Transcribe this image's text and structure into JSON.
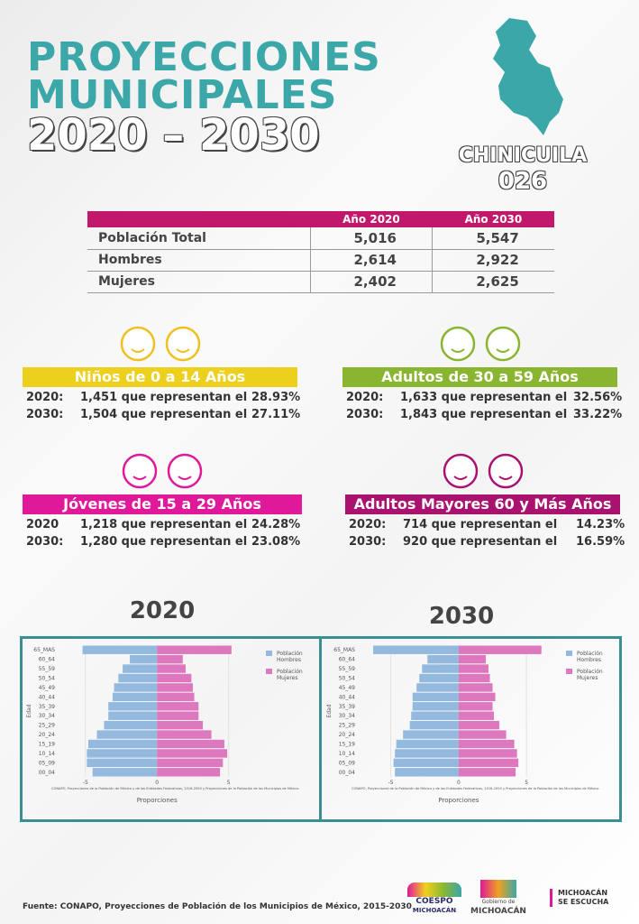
{
  "header": {
    "title_lines": [
      "PROYECCIONES",
      "MUNICIPALES",
      "2020 – 2030"
    ],
    "municipality": "CHINICUILA",
    "code": "026"
  },
  "table": {
    "columns": [
      "Año 2020",
      "Año 2030"
    ],
    "rows": [
      [
        "Población Total",
        "5,016",
        "5,547"
      ],
      [
        "Hombres",
        "2,614",
        "2,922"
      ],
      [
        "Mujeres",
        "2,402",
        "2,625"
      ]
    ]
  },
  "groups": [
    {
      "title": "Niños de 0 a 14 Años",
      "rows": [
        {
          "year": "2020:",
          "text": "1,451 que representan el",
          "pct": "28.93%"
        },
        {
          "year": "2030:",
          "text": "1,504 que representan el",
          "pct": "27.11%"
        }
      ]
    },
    {
      "title": "Adultos de 30 a 59 Años",
      "rows": [
        {
          "year": "2020:",
          "text": "1,633 que representan el",
          "pct": "32.56%"
        },
        {
          "year": "2030:",
          "text": "1,843 que representan el",
          "pct": "33.22%"
        }
      ]
    },
    {
      "title": "Jóvenes de 15 a 29 Años",
      "rows": [
        {
          "year": "2020",
          "text": "1,218 que representan el",
          "pct": "24.28%"
        },
        {
          "year": "2030:",
          "text": "1,280 que representan el",
          "pct": "23.08%"
        }
      ]
    },
    {
      "title": "Adultos Mayores 60 y Más Años",
      "rows": [
        {
          "year": "2020:",
          "text": "714 que representan el",
          "pct": "14.23%"
        },
        {
          "year": "2030:",
          "text": "920 que representan el",
          "pct": "16.59%"
        }
      ]
    }
  ],
  "chart_data": [
    {
      "type": "pyramid",
      "title": "2020",
      "ylabel": "Edad",
      "xlabel": "Proporciones",
      "note": "CONAPO, Proyecciones de la Población de México y de las Entidades Federativas, 2016-2050 y Proyecciones de la Población de los Municipios de México",
      "categories": [
        "65_MAS",
        "60_64",
        "55_59",
        "50_54",
        "45_49",
        "40_44",
        "35_39",
        "30_34",
        "25_29",
        "20_24",
        "15_19",
        "10_14",
        "05_09",
        "00_04"
      ],
      "series": [
        {
          "name": "Población Hombres",
          "color": "#93bade",
          "values": [
            -5.2,
            -1.9,
            -2.4,
            -2.7,
            -3.0,
            -3.1,
            -3.4,
            -3.4,
            -3.7,
            -4.2,
            -4.8,
            -4.9,
            -4.9,
            -4.5
          ]
        },
        {
          "name": "Población Mujeres",
          "color": "#dd78be",
          "values": [
            5.2,
            1.8,
            2.0,
            2.4,
            2.5,
            2.6,
            2.9,
            2.9,
            3.2,
            3.8,
            4.7,
            4.9,
            4.6,
            4.4
          ]
        }
      ],
      "xlim": [
        -7,
        11
      ],
      "xticks": [
        -5,
        0,
        5
      ],
      "grid": true
    },
    {
      "type": "pyramid",
      "title": "2030",
      "ylabel": "Edad",
      "xlabel": "Proporciones",
      "note": "CONAPO, Proyecciones de la Población de México y de las Entidades Federativas, 2016-2050 y Proyecciones de la Población de los Municipios de México",
      "categories": [
        "65_MAS",
        "60_64",
        "55_59",
        "50_54",
        "45_49",
        "40_44",
        "35_39",
        "30_34",
        "25_29",
        "20_24",
        "15_19",
        "10_14",
        "05_09",
        "00_04"
      ],
      "series": [
        {
          "name": "Población Hombres",
          "color": "#93bade",
          "values": [
            -6.3,
            -2.3,
            -2.7,
            -2.9,
            -3.1,
            -3.4,
            -3.4,
            -3.5,
            -3.6,
            -4.1,
            -4.6,
            -4.7,
            -4.8,
            -4.7
          ]
        },
        {
          "name": "Población Mujeres",
          "color": "#dd78be",
          "values": [
            6.1,
            2.0,
            2.2,
            2.3,
            2.5,
            2.7,
            2.5,
            2.6,
            3.0,
            3.5,
            4.1,
            4.3,
            4.4,
            4.2
          ]
        }
      ],
      "xlim": [
        -7.5,
        11.5
      ],
      "xticks": [
        -5,
        0,
        5
      ],
      "grid": true
    }
  ],
  "footer": {
    "source": "Fuente: CONAPO, Proyecciones de Población de los Municipios de México, 2015-2030",
    "logos": [
      "COESPO",
      "MICHOACÁN",
      "Gobierno de",
      "MICHOACÁN",
      "MICHOACÁN",
      "SE ESCUCHA"
    ]
  }
}
